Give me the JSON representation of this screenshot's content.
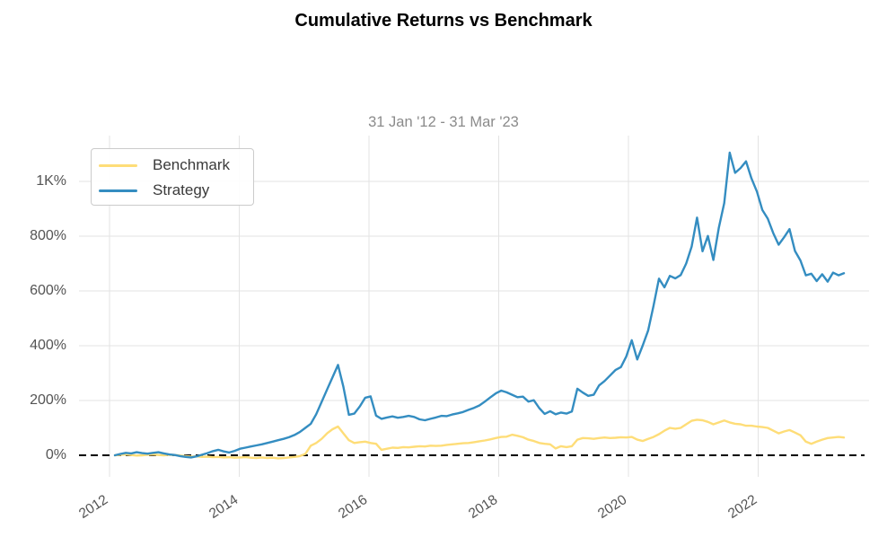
{
  "header": {
    "title": "Cumulative Returns vs Benchmark"
  },
  "chart": {
    "subtitle": "31 Jan '12 - 31 Mar '23"
  },
  "colors": {
    "strategy": "#348dc1",
    "benchmark": "#fedd78",
    "gridline": "#e3e3e3",
    "zero_line": "#000000",
    "tick_label": "#545454",
    "subtitle_text": "#8b8b8b",
    "legend_border": "#cbcbcb"
  },
  "legend": {
    "position": "upper-left"
  },
  "chart_data": {
    "type": "line",
    "title": "Cumulative Returns vs Benchmark",
    "subtitle": "31 Jan '12 - 31 Mar '23",
    "x_unit": "month",
    "x_start": "2012-01",
    "x_end": "2023-03",
    "x_tick_years": [
      2012,
      2014,
      2016,
      2018,
      2020,
      2022
    ],
    "x_tick_labels": [
      "2012",
      "2014",
      "2016",
      "2018",
      "2020",
      "2022"
    ],
    "y_ticks": [
      0,
      200,
      400,
      600,
      800,
      1000
    ],
    "y_tick_labels": [
      "0%",
      "200%",
      "400%",
      "600%",
      "800%",
      "1K%"
    ],
    "ylim": [
      -79,
      1167
    ],
    "grid": true,
    "zero_line": "dashed",
    "legend_position": "upper-left",
    "series": [
      {
        "name": "Benchmark",
        "color": "#fedd78",
        "values": [
          0,
          2,
          3,
          1,
          -1,
          0,
          2,
          3,
          1,
          0,
          2,
          1,
          -1,
          -3,
          -5,
          -4,
          -6,
          -5,
          -7,
          -6,
          -8,
          -7,
          -9,
          -8,
          -7,
          -9,
          -10,
          -8,
          -10,
          -9,
          -11,
          -10,
          -8,
          -6,
          -3,
          5,
          35,
          45,
          60,
          80,
          95,
          105,
          80,
          55,
          45,
          48,
          50,
          45,
          42,
          20,
          24,
          28,
          27,
          30,
          29,
          31,
          33,
          32,
          35,
          34,
          35,
          38,
          40,
          42,
          44,
          45,
          48,
          51,
          54,
          58,
          63,
          67,
          68,
          75,
          71,
          66,
          57,
          52,
          45,
          42,
          40,
          25,
          33,
          30,
          33,
          57,
          63,
          62,
          60,
          63,
          65,
          63,
          64,
          66,
          65,
          67,
          57,
          52,
          60,
          67,
          77,
          90,
          100,
          97,
          100,
          113,
          126,
          130,
          128,
          122,
          113,
          120,
          127,
          120,
          115,
          113,
          108,
          108,
          105,
          103,
          100,
          90,
          80,
          87,
          92,
          83,
          73,
          50,
          42,
          50,
          57,
          63,
          65,
          67,
          65
        ]
      },
      {
        "name": "Strategy",
        "color": "#348dc1",
        "values": [
          0,
          5,
          9,
          7,
          11,
          8,
          6,
          9,
          11,
          7,
          3,
          1,
          -3,
          -6,
          -8,
          -4,
          2,
          8,
          15,
          20,
          14,
          10,
          16,
          24,
          28,
          32,
          36,
          40,
          45,
          50,
          55,
          60,
          66,
          74,
          85,
          100,
          115,
          150,
          195,
          240,
          285,
          330,
          250,
          148,
          152,
          178,
          210,
          215,
          145,
          133,
          138,
          142,
          137,
          140,
          144,
          140,
          131,
          128,
          133,
          138,
          144,
          143,
          149,
          153,
          158,
          166,
          173,
          182,
          196,
          211,
          226,
          236,
          230,
          221,
          212,
          214,
          196,
          201,
          172,
          151,
          161,
          150,
          156,
          152,
          160,
          243,
          229,
          217,
          221,
          255,
          271,
          291,
          311,
          322,
          361,
          420,
          350,
          400,
          455,
          545,
          645,
          613,
          655,
          646,
          658,
          700,
          762,
          868,
          745,
          801,
          713,
          831,
          921,
          1105,
          1031,
          1049,
          1073,
          1011,
          963,
          896,
          864,
          811,
          769,
          796,
          826,
          746,
          711,
          657,
          663,
          636,
          661,
          634,
          667,
          657,
          665
        ]
      }
    ]
  }
}
